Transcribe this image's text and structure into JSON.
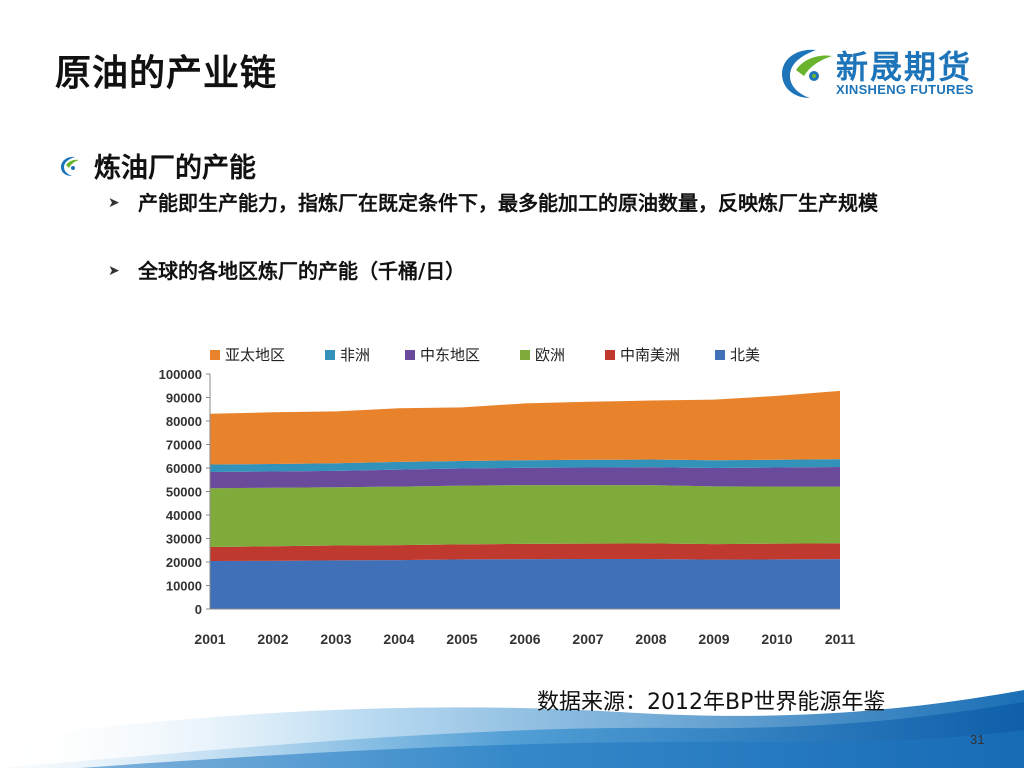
{
  "slide": {
    "title": "原油的产业链",
    "bullet": "炼油厂的产能",
    "sub1": "产能即生产能力，指炼厂在既定条件下，最多能加工的原油数量，反映炼厂生产规模",
    "sub2": "全球的各地区炼厂的产能（千桶/日）",
    "source": "数据来源：2012年BP世界能源年鉴",
    "page_number": "31"
  },
  "logo": {
    "name_cn": "新晟期货",
    "name_en": "XINSHENG FUTURES"
  },
  "colors": {
    "brand_blue": "#1d74b8",
    "brand_green": "#6ab42d"
  },
  "chart_data": {
    "type": "area",
    "stacked": true,
    "x": [
      "2001",
      "2002",
      "2003",
      "2004",
      "2005",
      "2006",
      "2007",
      "2008",
      "2009",
      "2010",
      "2011"
    ],
    "ylim": [
      0,
      100000
    ],
    "yticks": [
      0,
      10000,
      20000,
      30000,
      40000,
      50000,
      60000,
      70000,
      80000,
      90000,
      100000
    ],
    "legend_position": "top",
    "grid": false,
    "series": [
      {
        "name": "北美",
        "color": "#3f70b8",
        "values": [
          20400,
          20500,
          20700,
          20800,
          21100,
          21200,
          21300,
          21300,
          21000,
          21100,
          21200
        ]
      },
      {
        "name": "中南美洲",
        "color": "#c0392f",
        "values": [
          6000,
          6200,
          6300,
          6400,
          6400,
          6500,
          6500,
          6600,
          6600,
          6700,
          6700
        ]
      },
      {
        "name": "欧洲",
        "color": "#7fab3b",
        "values": [
          25000,
          24900,
          24800,
          24900,
          25000,
          25000,
          24900,
          24800,
          24600,
          24300,
          24200
        ]
      },
      {
        "name": "中东地区",
        "color": "#6a4a9b",
        "values": [
          6900,
          6900,
          7000,
          7200,
          7300,
          7400,
          7500,
          7600,
          7800,
          8100,
          8300
        ]
      },
      {
        "name": "非洲",
        "color": "#3392ba",
        "values": [
          3200,
          3200,
          3200,
          3300,
          3200,
          3200,
          3300,
          3300,
          3300,
          3300,
          3400
        ]
      },
      {
        "name": "亚太地区",
        "color": "#e9832b",
        "values": [
          21600,
          22000,
          22100,
          22800,
          22800,
          24200,
          24700,
          25100,
          25800,
          27200,
          29000
        ]
      }
    ],
    "legend_order": [
      "亚太地区",
      "非洲",
      "中东地区",
      "欧洲",
      "中南美洲",
      "北美"
    ]
  }
}
